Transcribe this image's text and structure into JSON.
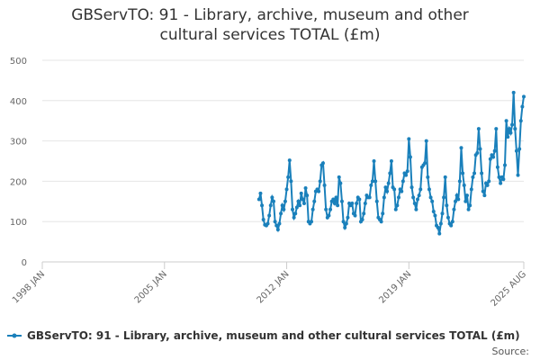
{
  "chart_data": {
    "type": "line",
    "title": "GBServTO: 91 - Library, archive, museum and other cultural services TOTAL (£m)",
    "source": "Source:",
    "x": [
      "2010-06",
      "2010-07",
      "2010-08",
      "2010-09",
      "2010-10",
      "2010-11",
      "2010-12",
      "2011-01",
      "2011-02",
      "2011-03",
      "2011-04",
      "2011-05",
      "2011-06",
      "2011-07",
      "2011-08",
      "2011-09",
      "2011-10",
      "2011-11",
      "2011-12",
      "2012-01",
      "2012-02",
      "2012-03",
      "2012-04",
      "2012-05",
      "2012-06",
      "2012-07",
      "2012-08",
      "2012-09",
      "2012-10",
      "2012-11",
      "2012-12",
      "2013-01",
      "2013-02",
      "2013-03",
      "2013-04",
      "2013-05",
      "2013-06",
      "2013-07",
      "2013-08",
      "2013-09",
      "2013-10",
      "2013-11",
      "2013-12",
      "2014-01",
      "2014-02",
      "2014-03",
      "2014-04",
      "2014-05",
      "2014-06",
      "2014-07",
      "2014-08",
      "2014-09",
      "2014-10",
      "2014-11",
      "2014-12",
      "2015-01",
      "2015-02",
      "2015-03",
      "2015-04",
      "2015-05",
      "2015-06",
      "2015-07",
      "2015-08",
      "2015-09",
      "2015-10",
      "2015-11",
      "2015-12",
      "2016-01",
      "2016-02",
      "2016-03",
      "2016-04",
      "2016-05",
      "2016-06",
      "2016-07",
      "2016-08",
      "2016-09",
      "2016-10",
      "2016-11",
      "2016-12",
      "2017-01",
      "2017-02",
      "2017-03",
      "2017-04",
      "2017-05",
      "2017-06",
      "2017-07",
      "2017-08",
      "2017-09",
      "2017-10",
      "2017-11",
      "2017-12",
      "2018-01",
      "2018-02",
      "2018-03",
      "2018-04",
      "2018-05",
      "2018-06",
      "2018-07",
      "2018-08",
      "2018-09",
      "2018-10",
      "2018-11",
      "2018-12",
      "2019-01",
      "2019-02",
      "2019-03",
      "2019-04",
      "2019-05",
      "2019-06",
      "2019-07",
      "2019-08",
      "2019-09",
      "2019-10",
      "2019-11",
      "2019-12",
      "2020-01",
      "2020-02",
      "2020-03",
      "2020-04",
      "2020-05",
      "2020-06",
      "2020-07",
      "2020-08",
      "2020-09",
      "2020-10",
      "2020-11",
      "2020-12",
      "2021-01",
      "2021-02",
      "2021-03",
      "2021-04",
      "2021-05",
      "2021-06",
      "2021-07",
      "2021-08",
      "2021-09",
      "2021-10",
      "2021-11",
      "2021-12",
      "2022-01",
      "2022-02",
      "2022-03",
      "2022-04",
      "2022-05",
      "2022-06",
      "2022-07",
      "2022-08",
      "2022-09",
      "2022-10",
      "2022-11",
      "2022-12",
      "2023-01",
      "2023-02",
      "2023-03",
      "2023-04",
      "2023-05",
      "2023-06",
      "2023-07",
      "2023-08",
      "2023-09",
      "2023-10",
      "2023-11",
      "2023-12",
      "2024-01",
      "2024-02",
      "2024-03",
      "2024-04",
      "2024-05",
      "2024-06",
      "2024-07",
      "2024-08",
      "2024-09",
      "2024-10",
      "2024-11",
      "2024-12",
      "2025-01",
      "2025-02",
      "2025-03",
      "2025-04",
      "2025-05",
      "2025-06",
      "2025-07",
      "2025-08"
    ],
    "series": [
      {
        "name": "GBServTO: 91 - Library, archive, museum and other cultural services TOTAL (£m)",
        "color": "#1a80bb",
        "values": [
          155,
          170,
          140,
          105,
          92,
          90,
          95,
          115,
          140,
          160,
          150,
          100,
          90,
          80,
          95,
          120,
          140,
          130,
          150,
          180,
          210,
          252,
          200,
          130,
          110,
          120,
          135,
          150,
          140,
          170,
          155,
          145,
          183,
          165,
          100,
          95,
          100,
          130,
          150,
          175,
          180,
          175,
          200,
          240,
          245,
          190,
          130,
          110,
          115,
          130,
          150,
          155,
          145,
          160,
          140,
          210,
          195,
          150,
          100,
          85,
          95,
          110,
          145,
          140,
          145,
          120,
          115,
          145,
          160,
          155,
          100,
          105,
          120,
          145,
          165,
          160,
          160,
          190,
          200,
          250,
          200,
          150,
          110,
          105,
          100,
          120,
          160,
          185,
          175,
          195,
          220,
          250,
          185,
          180,
          130,
          140,
          160,
          180,
          175,
          200,
          220,
          215,
          225,
          305,
          260,
          185,
          160,
          145,
          130,
          155,
          165,
          180,
          235,
          240,
          245,
          300,
          210,
          180,
          160,
          150,
          125,
          115,
          90,
          85,
          70,
          95,
          120,
          160,
          210,
          140,
          110,
          95,
          90,
          100,
          130,
          150,
          165,
          155,
          200,
          283,
          220,
          190,
          150,
          165,
          130,
          140,
          180,
          210,
          220,
          265,
          270,
          330,
          280,
          220,
          175,
          165,
          195,
          190,
          200,
          255,
          265,
          260,
          275,
          330,
          235,
          210,
          195,
          210,
          205,
          240,
          350,
          310,
          330,
          320,
          340,
          420,
          330,
          275,
          215,
          280,
          350,
          385,
          410
        ]
      }
    ],
    "xlim": [
      "1998-01",
      "2025-08"
    ],
    "xticks": [
      {
        "value": "1998-01",
        "label": "1998 JAN"
      },
      {
        "value": "2005-01",
        "label": "2005 JAN"
      },
      {
        "value": "2012-01",
        "label": "2012 JAN"
      },
      {
        "value": "2019-01",
        "label": "2019 JAN"
      },
      {
        "value": "2025-08",
        "label": "2025 AUG"
      }
    ],
    "ylim": [
      0,
      500
    ],
    "yticks": [
      0,
      100,
      200,
      300,
      400,
      500
    ],
    "grid": true,
    "legend": "bottom"
  }
}
